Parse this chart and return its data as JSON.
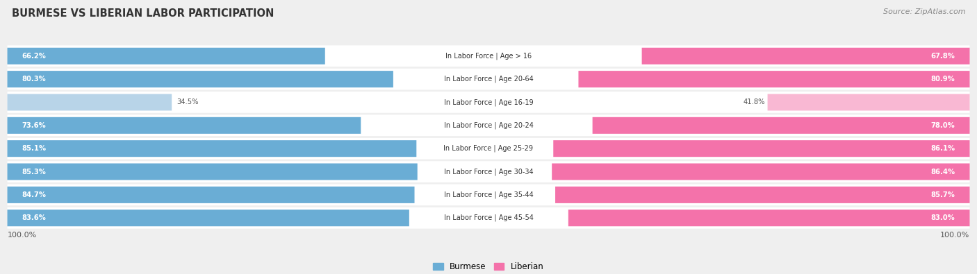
{
  "title": "BURMESE VS LIBERIAN LABOR PARTICIPATION",
  "source": "Source: ZipAtlas.com",
  "categories": [
    "In Labor Force | Age > 16",
    "In Labor Force | Age 20-64",
    "In Labor Force | Age 16-19",
    "In Labor Force | Age 20-24",
    "In Labor Force | Age 25-29",
    "In Labor Force | Age 30-34",
    "In Labor Force | Age 35-44",
    "In Labor Force | Age 45-54"
  ],
  "burmese": [
    66.2,
    80.3,
    34.5,
    73.6,
    85.1,
    85.3,
    84.7,
    83.6
  ],
  "liberian": [
    67.8,
    80.9,
    41.8,
    78.0,
    86.1,
    86.4,
    85.7,
    83.0
  ],
  "burmese_color_dark": "#6aadd5",
  "burmese_color_light": "#b8d4e8",
  "liberian_color_dark": "#f472aa",
  "liberian_color_light": "#f9b8d3",
  "row_bg_color": "#ffffff",
  "outer_bg_color": "#e8e8e8",
  "background_color": "#efefef",
  "legend_burmese": "Burmese",
  "legend_liberian": "Liberian",
  "threshold": 50
}
